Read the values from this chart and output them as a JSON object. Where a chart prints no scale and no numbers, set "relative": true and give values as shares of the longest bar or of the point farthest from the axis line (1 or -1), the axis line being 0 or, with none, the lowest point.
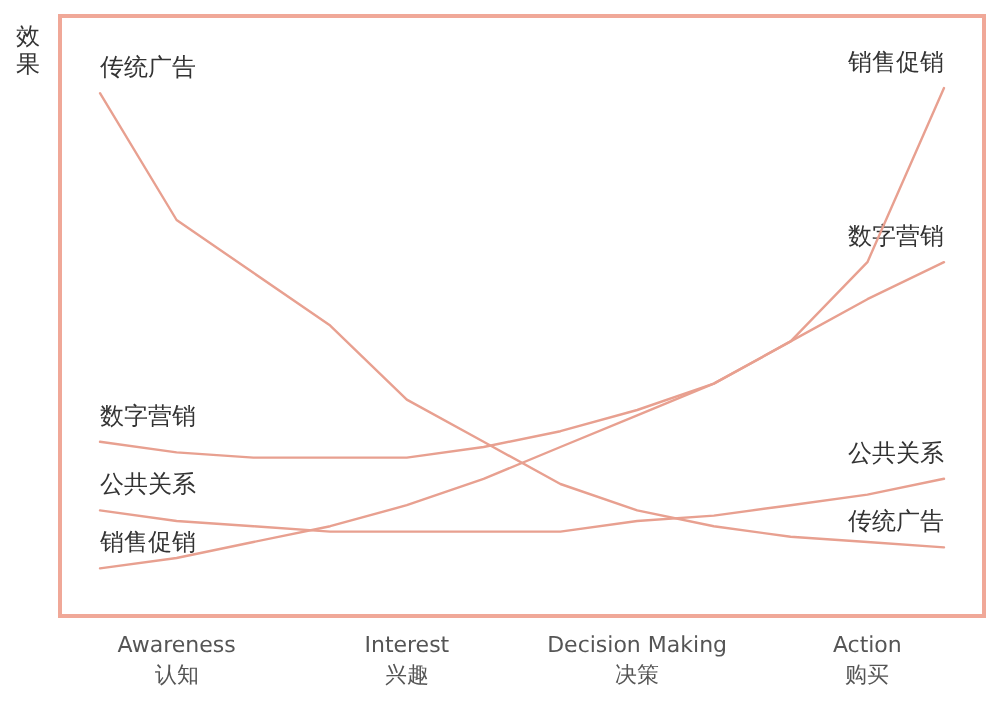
{
  "chart_data": {
    "type": "line",
    "relative": true,
    "ylabel": "效果",
    "categories": [
      null,
      "Awareness\n认知",
      null,
      null,
      "Interest\n兴趣",
      null,
      null,
      "Decision Making\n决策",
      null,
      null,
      "Action\n购买",
      null
    ],
    "series": [
      {
        "name": "传统广告",
        "color": "#e8a090",
        "values": [
          0.99,
          0.75,
          0.65,
          0.55,
          0.41,
          0.33,
          0.25,
          0.2,
          0.17,
          0.15,
          0.14,
          0.13
        ]
      },
      {
        "name": "数字营销",
        "color": "#e8a090",
        "values": [
          0.33,
          0.31,
          0.3,
          0.3,
          0.3,
          0.32,
          0.35,
          0.39,
          0.44,
          0.52,
          0.6,
          0.67
        ]
      },
      {
        "name": "公共关系",
        "color": "#e8a090",
        "values": [
          0.2,
          0.18,
          0.17,
          0.16,
          0.16,
          0.16,
          0.16,
          0.18,
          0.19,
          0.21,
          0.23,
          0.26
        ]
      },
      {
        "name": "销售促销",
        "color": "#e8a090",
        "values": [
          0.09,
          0.11,
          0.14,
          0.17,
          0.21,
          0.26,
          0.32,
          0.38,
          0.44,
          0.52,
          0.67,
          1.0
        ]
      }
    ]
  }
}
